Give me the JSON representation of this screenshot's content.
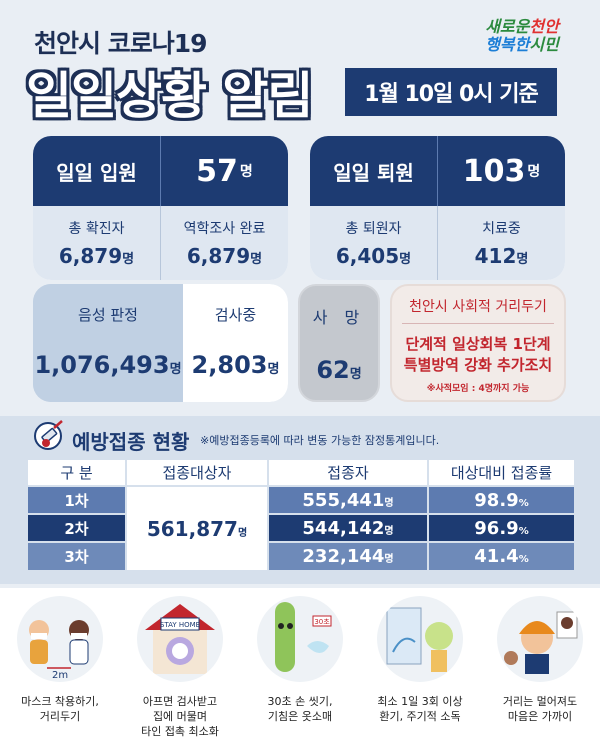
{
  "header": {
    "subtitle": "천안시 코로나19",
    "title": "일일상황 알림",
    "date": "1월 10일 0시 기준",
    "logo_line1": [
      "새로운",
      "천안"
    ],
    "logo_line2": [
      "행복한",
      "시민"
    ]
  },
  "admission": {
    "label": "일일 입원",
    "value": "57",
    "unit": "명",
    "items": [
      {
        "label": "총 확진자",
        "value": "6,879",
        "unit": "명"
      },
      {
        "label": "역학조사 완료",
        "value": "6,879",
        "unit": "명"
      }
    ]
  },
  "discharge": {
    "label": "일일 퇴원",
    "value": "103",
    "unit": "명",
    "items": [
      {
        "label": "총 퇴원자",
        "value": "6,405",
        "unit": "명"
      },
      {
        "label": "치료중",
        "value": "412",
        "unit": "명"
      }
    ]
  },
  "tests": {
    "negative_label": "음성 판정",
    "negative_value": "1,076,493",
    "testing_label": "검사중",
    "testing_value": "2,803",
    "unit": "명"
  },
  "death": {
    "label": "사 망",
    "value": "62",
    "unit": "명"
  },
  "distancing": {
    "title": "천안시 사회적 거리두기",
    "line1": "단계적 일상회복 1단계",
    "line2": "특별방역 강화 추가조치",
    "note": "※사적모임 : 4명까지 가능"
  },
  "vaccination": {
    "title": "예방접종 현황",
    "note": "※예방접종등록에 따라 변동 가능한 잠정통계입니다.",
    "headers": [
      "구 분",
      "접종대상자",
      "접종자",
      "대상대비 접종률"
    ],
    "target": "561,877",
    "target_unit": "명",
    "rows": [
      {
        "label": "1차",
        "count": "555,441",
        "unit": "명",
        "rate": "98.9",
        "pct": "%"
      },
      {
        "label": "2차",
        "count": "544,142",
        "unit": "명",
        "rate": "96.9",
        "pct": "%"
      },
      {
        "label": "3차",
        "count": "232,144",
        "unit": "명",
        "rate": "41.4",
        "pct": "%"
      }
    ]
  },
  "rules": [
    {
      "caption": "마스크 착용하기,\n거리두기",
      "sign": "2m"
    },
    {
      "caption": "아프면 검사받고\n집에 머물며\n타인 접촉 최소화",
      "sign": "STAY HOME"
    },
    {
      "caption": "30초 손 씻기,\n기침은 옷소매",
      "sign": "30초"
    },
    {
      "caption": "최소 1일 3회 이상\n환기, 주기적 소독",
      "sign": ""
    },
    {
      "caption": "거리는 멀어져도\n마음은 가까이",
      "sign": ""
    }
  ],
  "colors": {
    "navy": "#1d3b72",
    "blue": "#2f6fc0",
    "red": "#c2262e"
  }
}
